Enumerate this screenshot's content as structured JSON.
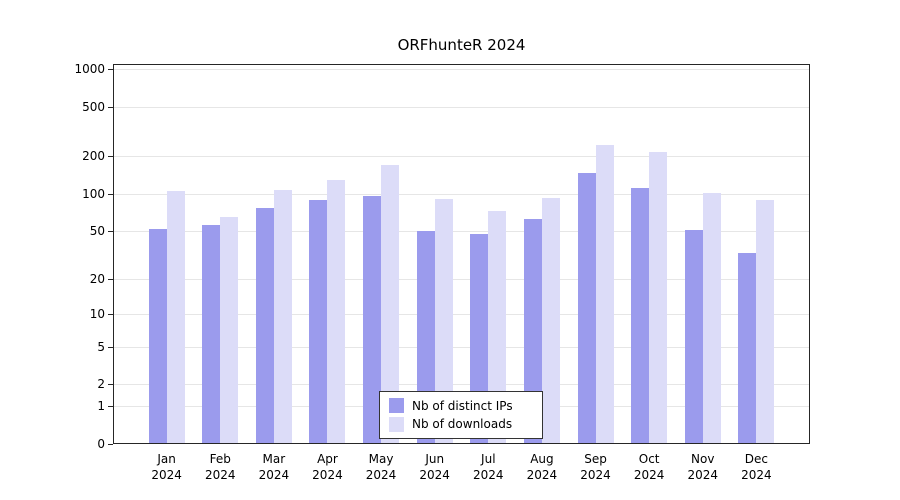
{
  "chart_data": {
    "type": "bar",
    "title": "ORFhunteR 2024",
    "categories": [
      "Jan",
      "Feb",
      "Mar",
      "Apr",
      "May",
      "Jun",
      "Jul",
      "Aug",
      "Sep",
      "Oct",
      "Nov",
      "Dec"
    ],
    "category_year": "2024",
    "series": [
      {
        "name": "Nb of distinct IPs",
        "color": "#9b9bed",
        "values": [
          52,
          56,
          76,
          88,
          96,
          50,
          47,
          62,
          148,
          112,
          51,
          33
        ]
      },
      {
        "name": "Nb of downloads",
        "color": "#dcdcf8",
        "values": [
          104,
          65,
          106,
          128,
          170,
          90,
          72,
          93,
          245,
          215,
          102,
          88
        ]
      }
    ],
    "yticks": [
      0,
      1,
      2,
      5,
      10,
      20,
      50,
      100,
      200,
      500,
      1000
    ],
    "y_scale": "log10(value+1)",
    "ylim": [
      0,
      1100
    ],
    "grid": true,
    "grid_color": "#e6e6e6",
    "axis_color": "#262626",
    "background": "#ffffff",
    "legend_position": "bottom-center-inside"
  }
}
